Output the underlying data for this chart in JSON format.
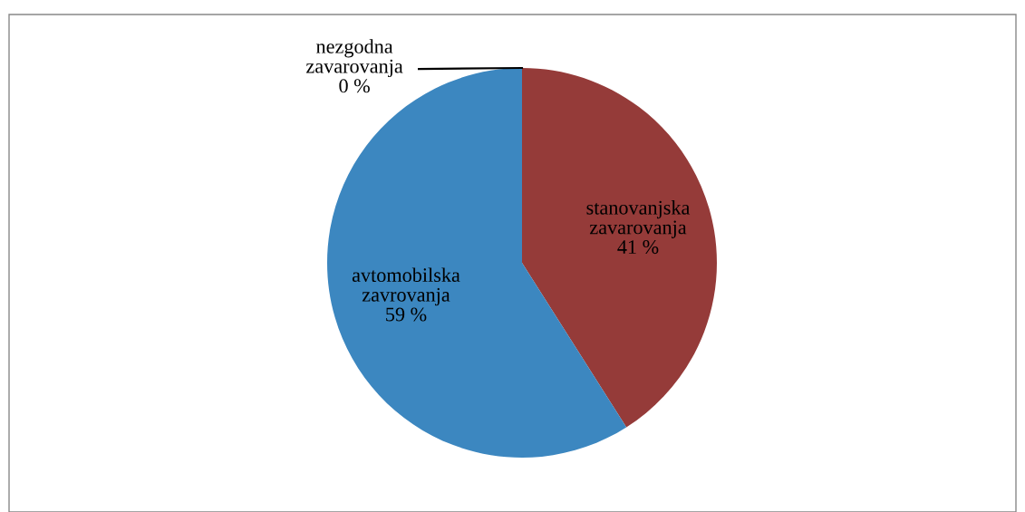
{
  "chart_data": {
    "type": "pie",
    "categories": [
      "stanovanjska\nzavarovanja",
      "avtomobilska\nzavrovanja",
      "nezgodna\nzavarovanja"
    ],
    "values": [
      41,
      59,
      0
    ],
    "value_labels": [
      "41 %",
      "59 %",
      "0 %"
    ],
    "colors": [
      "#953b39",
      "#3c87c0",
      "#8cb140"
    ]
  }
}
